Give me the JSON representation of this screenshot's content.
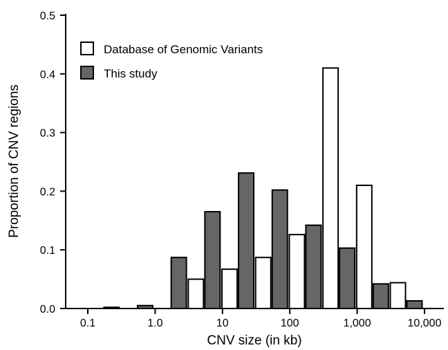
{
  "chart_data": {
    "type": "bar",
    "title": "",
    "xlabel": "CNV size (in kb)",
    "ylabel": "Proportion of CNV regions",
    "ylim": [
      0,
      0.5
    ],
    "x_scale": "log",
    "y_ticks": [
      "0.0",
      "0.1",
      "0.2",
      "0.3",
      "0.4",
      "0.5"
    ],
    "x_ticks": [
      {
        "label": "0.1",
        "value": 0.1
      },
      {
        "label": "1.0",
        "value": 1
      },
      {
        "label": "10",
        "value": 10
      },
      {
        "label": "100",
        "value": 100
      },
      {
        "label": "1,000",
        "value": 1000
      },
      {
        "label": "10,000",
        "value": 10000
      }
    ],
    "bins": [
      {
        "from": 0.1,
        "to": 0.3
      },
      {
        "from": 0.3,
        "to": 1
      },
      {
        "from": 1,
        "to": 3
      },
      {
        "from": 3,
        "to": 10
      },
      {
        "from": 10,
        "to": 30
      },
      {
        "from": 30,
        "to": 100
      },
      {
        "from": 100,
        "to": 300
      },
      {
        "from": 300,
        "to": 1000
      },
      {
        "from": 1000,
        "to": 3000
      },
      {
        "from": 3000,
        "to": 10000
      }
    ],
    "series": [
      {
        "name": "Database of Genomic Variants",
        "color": "#ffffff",
        "values": [
          0.0,
          0.0,
          0.0,
          0.05,
          0.067,
          0.087,
          0.126,
          0.41,
          0.21,
          0.044
        ]
      },
      {
        "name": "This study",
        "color": "#666666",
        "values": [
          0.002,
          0.005,
          0.087,
          0.165,
          0.231,
          0.202,
          0.142,
          0.103,
          0.042,
          0.013
        ]
      }
    ],
    "grid": false,
    "legend": "top-left"
  }
}
